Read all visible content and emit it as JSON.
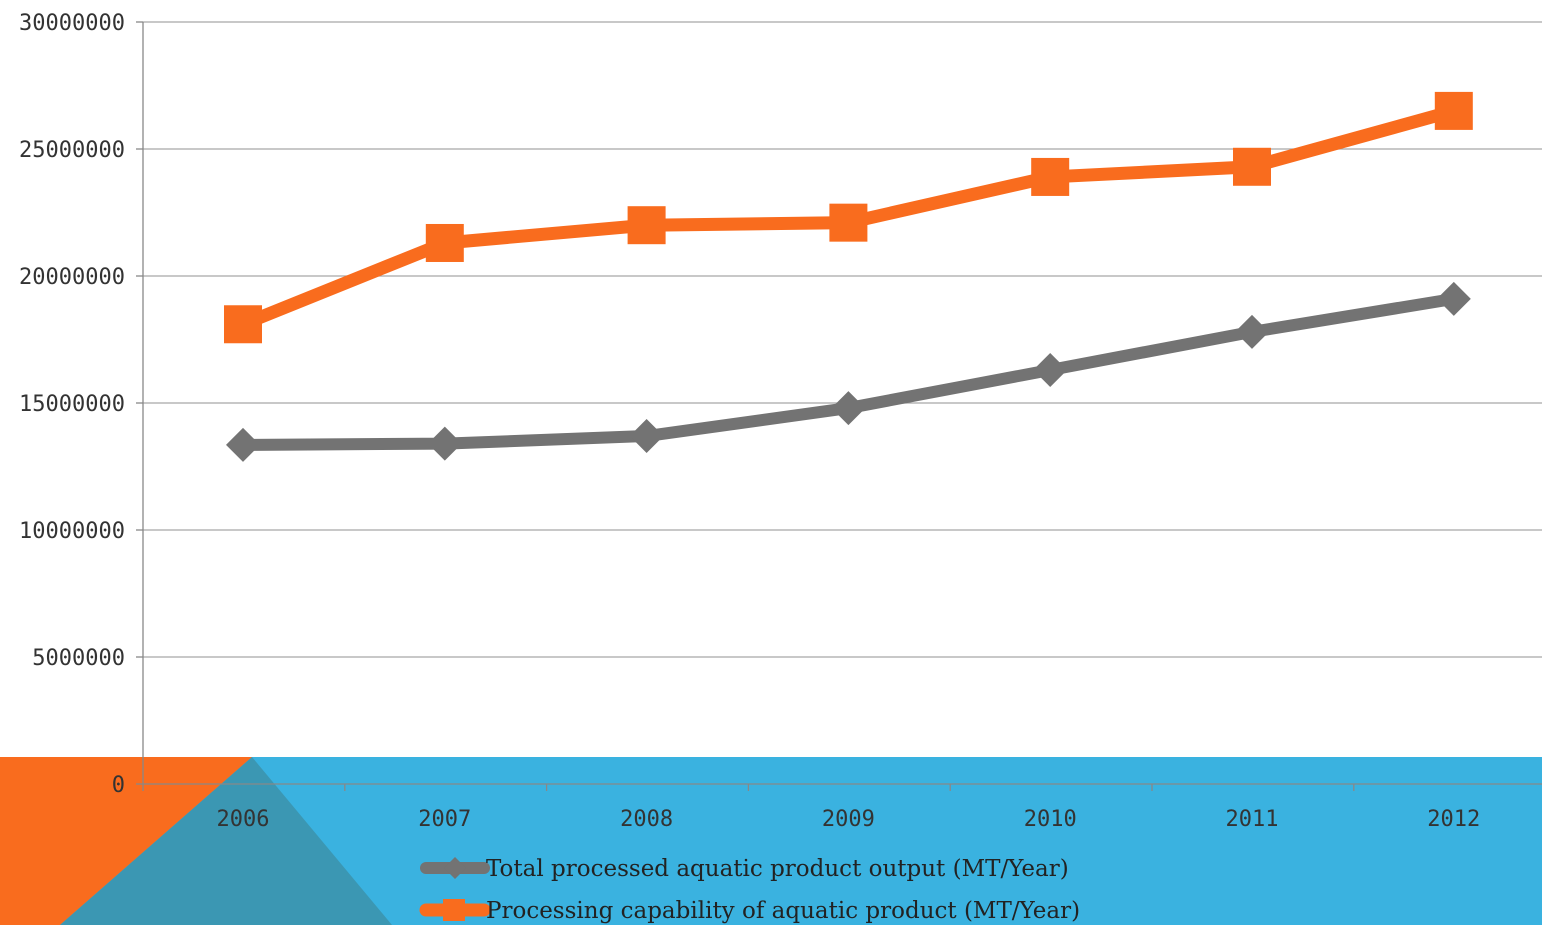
{
  "colors": {
    "background": "#ffffff",
    "footer_blue": "#3ab2e0",
    "footer_orange": "#f96c1e",
    "footer_teal": "#3b97b3",
    "gridline": "#a6a6a6",
    "axis": "#888888",
    "tick_text": "#333333"
  },
  "chart_data": {
    "type": "line",
    "categories": [
      "2006",
      "2007",
      "2008",
      "2009",
      "2010",
      "2011",
      "2012"
    ],
    "ylim": [
      0,
      30000000
    ],
    "y_ticks": [
      "0",
      "5000000",
      "10000000",
      "15000000",
      "20000000",
      "25000000",
      "30000000"
    ],
    "grid": true,
    "legend_position": "bottom",
    "xlabel": "",
    "ylabel": "",
    "title": "",
    "series": [
      {
        "name": "Total processed aquatic product output (MT/Year)",
        "marker": "diamond",
        "color": "#737373",
        "values": [
          13350000,
          13400000,
          13700000,
          14800000,
          16300000,
          17800000,
          19100000
        ]
      },
      {
        "name": "Processing capability of aquatic product (MT/Year)",
        "marker": "square",
        "color": "#f96c1e",
        "values": [
          18100000,
          21300000,
          22000000,
          22100000,
          23900000,
          24300000,
          26500000
        ]
      }
    ]
  }
}
